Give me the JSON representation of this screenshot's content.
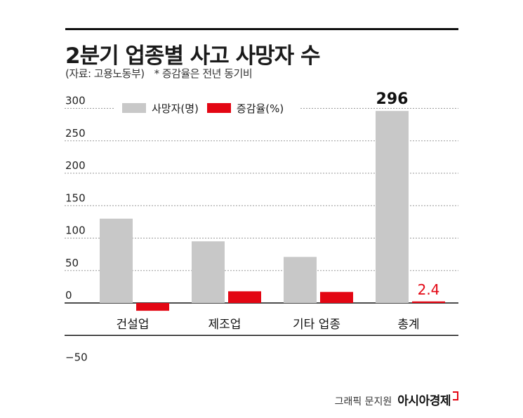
{
  "header": {
    "title": "2분기 업종별 사고 사망자 수",
    "source": "(자료: 고용노동부)",
    "note": "* 증감율은 전년 동기비"
  },
  "legend": {
    "deaths_label": "사망자(명)",
    "rate_label": "증감율(%)"
  },
  "credit": {
    "graphic": "그래픽 문지원",
    "brand": "아시아경제"
  },
  "colors": {
    "deaths": "#c8c8c8",
    "rate": "#e30613",
    "grid": "#9a9a9a"
  },
  "chart_data": {
    "type": "bar",
    "categories": [
      "건설업",
      "제조업",
      "기타 업종",
      "총계"
    ],
    "series": [
      {
        "name": "사망자(명)",
        "values": [
          130,
          95,
          71,
          296
        ]
      },
      {
        "name": "증감율(%)",
        "values": [
          -12,
          18,
          17,
          2.4
        ]
      }
    ],
    "data_labels": [
      {
        "series": 0,
        "index": 3,
        "text": "296"
      },
      {
        "series": 1,
        "index": 3,
        "text": "2.4"
      }
    ],
    "yticks": [
      300,
      250,
      200,
      150,
      100,
      50,
      0,
      -50
    ],
    "ytick_labels": [
      "300",
      "250",
      "200",
      "150",
      "100",
      "50",
      "0",
      "−50"
    ],
    "ylim": [
      -60,
      310
    ],
    "grid": true,
    "legend_position": "top-left"
  }
}
